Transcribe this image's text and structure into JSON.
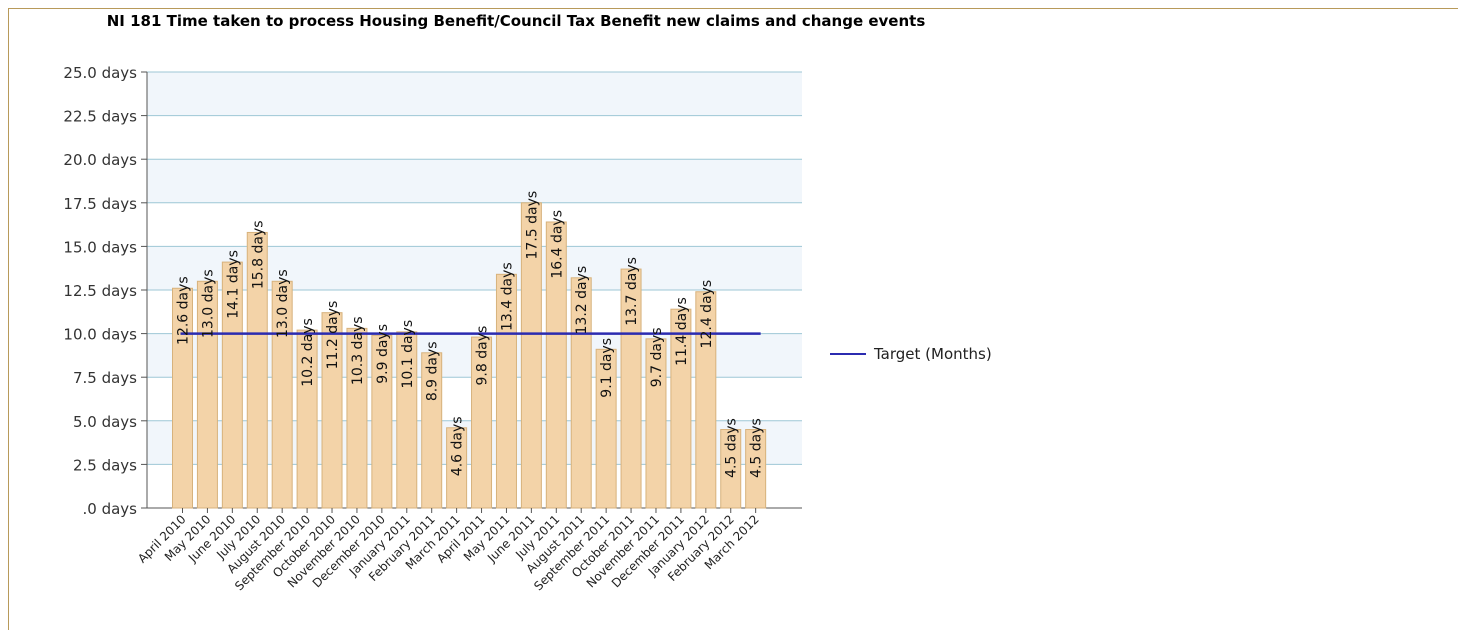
{
  "chart_data": {
    "type": "bar",
    "title": "NI 181 Time taken to process Housing Benefit/Council Tax Benefit new claims and change events",
    "xlabel": "",
    "ylabel": "",
    "ylim": [
      0,
      25
    ],
    "yticks": [
      ".0 days",
      "2.5 days",
      "5.0 days",
      "7.5 days",
      "10.0 days",
      "12.5 days",
      "15.0 days",
      "17.5 days",
      "20.0 days",
      "22.5 days",
      "25.0 days"
    ],
    "grid": true,
    "legend_position": "right",
    "categories": [
      "April 2010",
      "May 2010",
      "June 2010",
      "July 2010",
      "August 2010",
      "September 2010",
      "October 2010",
      "November 2010",
      "December 2010",
      "January 2011",
      "February 2011",
      "March 2011",
      "April 2011",
      "May 2011",
      "June 2011",
      "July 2011",
      "August 2011",
      "September 2011",
      "October 2011",
      "November 2011",
      "December 2011",
      "January 2012",
      "February 2012",
      "March 2012"
    ],
    "series": [
      {
        "kind": "bar",
        "values": [
          12.6,
          13.0,
          14.1,
          15.8,
          13.0,
          10.2,
          11.2,
          10.3,
          9.9,
          10.1,
          8.9,
          4.6,
          9.8,
          13.4,
          17.5,
          16.4,
          13.2,
          9.1,
          13.7,
          9.7,
          11.4,
          12.4,
          4.5,
          4.5
        ],
        "labels": [
          "12.6 days",
          "13.0 days",
          "14.1 days",
          "15.8 days",
          "13.0 days",
          "10.2 days",
          "11.2 days",
          "10.3 days",
          "9.9 days",
          "10.1 days",
          "8.9 days",
          "4.6 days",
          "9.8 days",
          "13.4 days",
          "17.5 days",
          "16.4 days",
          "13.2 days",
          "9.1 days",
          "13.7 days",
          "9.7 days",
          "11.4 days",
          "12.4 days",
          "4.5 days",
          "4.5 days"
        ]
      },
      {
        "kind": "line",
        "name": "Target (Months)",
        "values": [
          10,
          10,
          10,
          10,
          10,
          10,
          10,
          10,
          10,
          10,
          10,
          10,
          10,
          10,
          10,
          10,
          10,
          10,
          10,
          10,
          10,
          10,
          10,
          10
        ]
      }
    ],
    "colors": {
      "bar_fill": "#f3d3a8",
      "bar_stroke": "#d7b27c",
      "target_line": "#2b2bb0",
      "plot_band_light": "#f1f6fb",
      "plot_band_white": "#ffffff",
      "grid": "#9ec7d6",
      "axis": "#555555"
    }
  }
}
